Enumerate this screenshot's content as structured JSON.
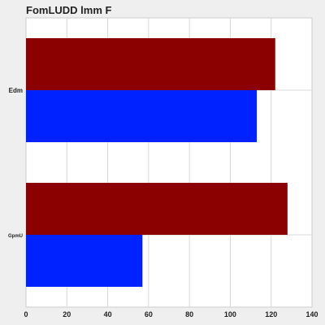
{
  "chart_data": {
    "type": "bar",
    "orientation": "horizontal",
    "title": "FomLUDD lmm F",
    "categories": [
      "Edm",
      "GpmU"
    ],
    "series": [
      {
        "values": [
          122,
          128
        ],
        "color": "#8b0000"
      },
      {
        "values": [
          113,
          57
        ],
        "color": "#0022ff"
      }
    ],
    "xlim": [
      0,
      140
    ],
    "xticks": [
      0,
      20,
      40,
      60,
      80,
      100,
      120,
      140
    ],
    "grid": true,
    "legend": "none",
    "xlabel": "",
    "ylabel": ""
  }
}
